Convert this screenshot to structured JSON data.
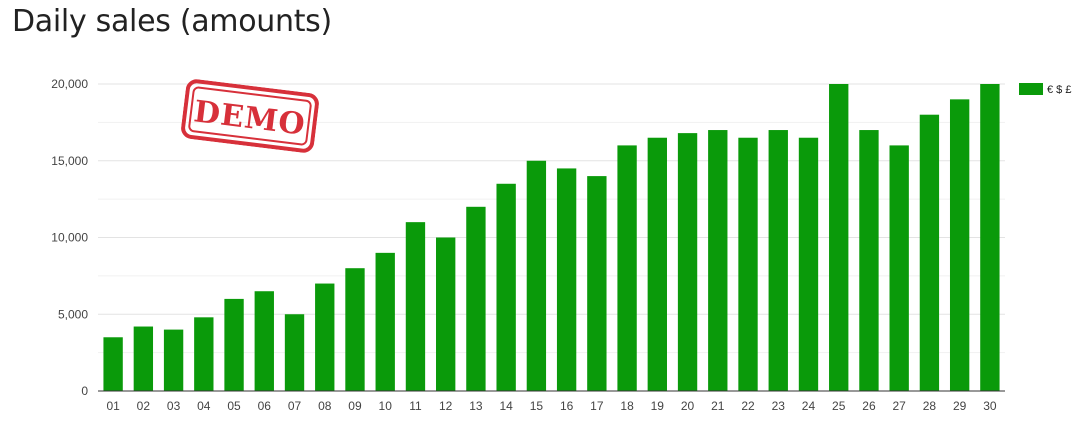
{
  "page": {
    "title": "Daily sales (amounts)"
  },
  "watermark": {
    "text": "DEMO",
    "color": "#d7303a"
  },
  "chart_data": {
    "type": "bar",
    "title": "Daily sales (amounts)",
    "xlabel": "",
    "ylabel": "",
    "categories": [
      "01",
      "02",
      "03",
      "04",
      "05",
      "06",
      "07",
      "08",
      "09",
      "10",
      "11",
      "12",
      "13",
      "14",
      "15",
      "16",
      "17",
      "18",
      "19",
      "20",
      "21",
      "22",
      "23",
      "24",
      "25",
      "26",
      "27",
      "28",
      "29",
      "30"
    ],
    "series": [
      {
        "name": "€ $ £",
        "color": "#0a9a0a",
        "values": [
          3500,
          4200,
          4000,
          4800,
          6000,
          6500,
          5000,
          7000,
          8000,
          9000,
          11000,
          10000,
          12000,
          13500,
          15000,
          14500,
          14000,
          16000,
          16500,
          16800,
          17000,
          16500,
          17000,
          16500,
          20000,
          17000,
          16000,
          18000,
          19000,
          20000
        ]
      }
    ],
    "ylim": [
      0,
      20000
    ],
    "yticks": [
      "0",
      "5,000",
      "10,000",
      "15,000",
      "20,000"
    ],
    "grid": true,
    "legend_position": "top-right"
  }
}
